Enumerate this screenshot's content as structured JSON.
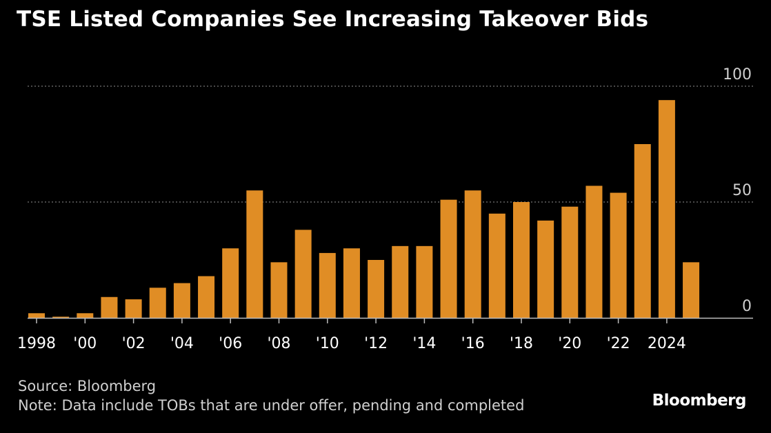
{
  "chart_data": {
    "type": "bar",
    "title": "TSE Listed Companies See Increasing Takeover Bids",
    "categories": [
      "1998",
      "1999",
      "2000",
      "2001",
      "2002",
      "2003",
      "2004",
      "2005",
      "2006",
      "2007",
      "2008",
      "2009",
      "2010",
      "2011",
      "2012",
      "2013",
      "2014",
      "2015",
      "2016",
      "2017",
      "2018",
      "2019",
      "2020",
      "2021",
      "2022",
      "2023",
      "2024",
      "2025"
    ],
    "values": [
      2,
      0.5,
      2,
      9,
      8,
      13,
      15,
      18,
      30,
      55,
      24,
      38,
      28,
      30,
      25,
      31,
      31,
      51,
      55,
      45,
      50,
      42,
      48,
      57,
      54,
      75,
      94,
      24
    ],
    "xtick_labels": [
      {
        "category": "1998",
        "label": "1998"
      },
      {
        "category": "2000",
        "label": "'00"
      },
      {
        "category": "2002",
        "label": "'02"
      },
      {
        "category": "2004",
        "label": "'04"
      },
      {
        "category": "2006",
        "label": "'06"
      },
      {
        "category": "2008",
        "label": "'08"
      },
      {
        "category": "2010",
        "label": "'10"
      },
      {
        "category": "2012",
        "label": "'12"
      },
      {
        "category": "2014",
        "label": "'14"
      },
      {
        "category": "2016",
        "label": "'16"
      },
      {
        "category": "2018",
        "label": "'18"
      },
      {
        "category": "2020",
        "label": "'20"
      },
      {
        "category": "2022",
        "label": "'22"
      },
      {
        "category": "2024",
        "label": "2024"
      }
    ],
    "yticks": [
      0,
      50,
      100
    ],
    "ylim": [
      0,
      100
    ],
    "xlabel": "",
    "ylabel": "",
    "grid": true,
    "bar_color": "#e08d25"
  },
  "footer": {
    "source": "Source: Bloomberg",
    "note": "Note: Data include TOBs that are under offer, pending and completed"
  },
  "brand": "Bloomberg"
}
